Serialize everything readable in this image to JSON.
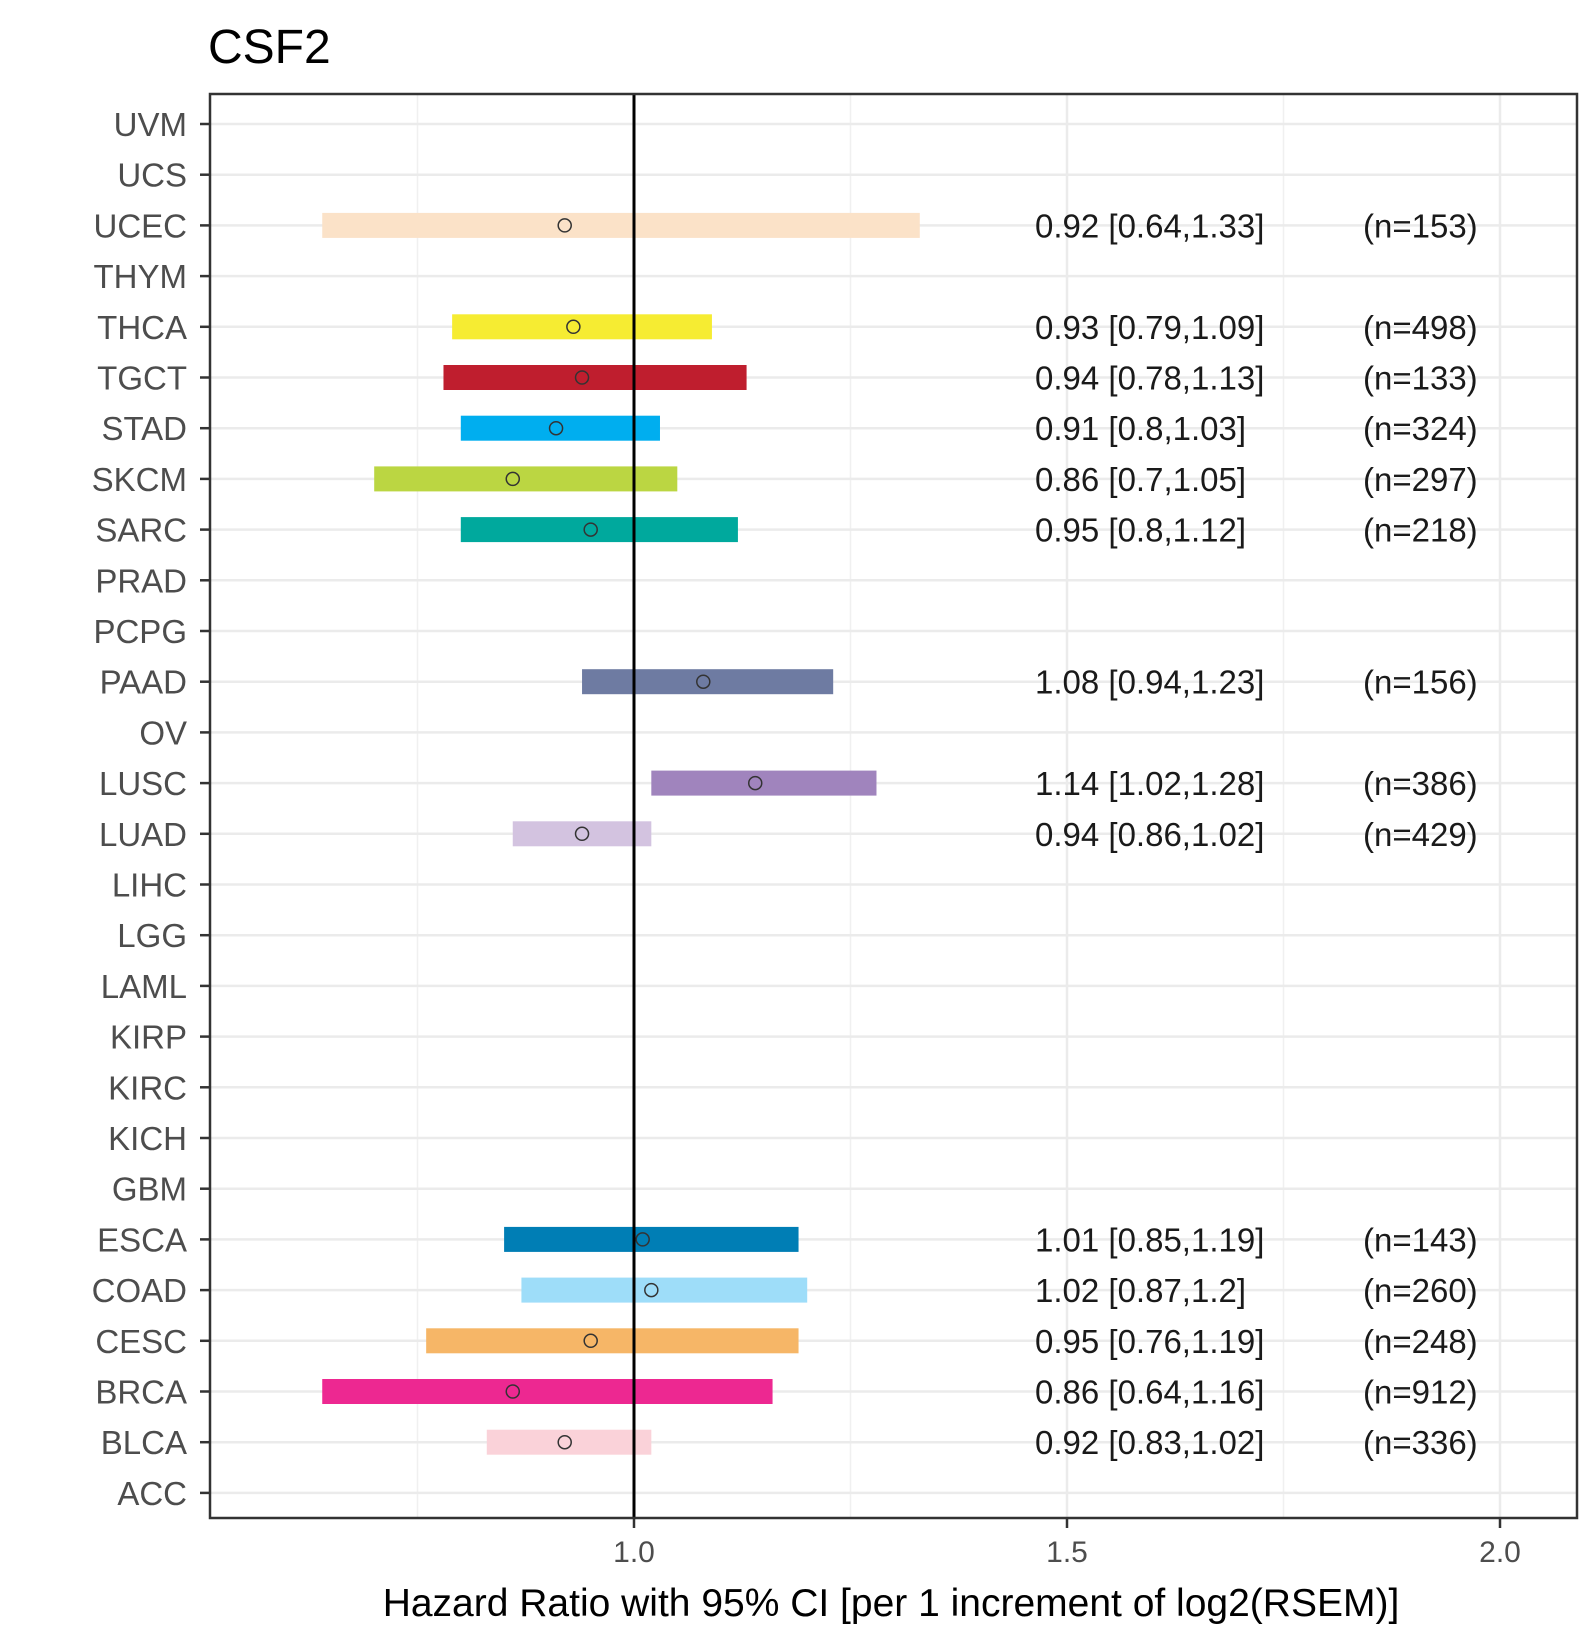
{
  "chart_data": {
    "type": "forest",
    "title": "CSF2",
    "xlabel": "Hazard Ratio with 95% CI [per 1 increment of log2(RSEM)]",
    "ylabel": "",
    "xlim": [
      0.5,
      2.09
    ],
    "xticks": [
      1.0,
      1.5,
      2.0
    ],
    "xtick_labels": [
      "1.0",
      "1.5",
      "2.0"
    ],
    "reference_line": 1.0,
    "grid": true,
    "categories": [
      "UVM",
      "UCS",
      "UCEC",
      "THYM",
      "THCA",
      "TGCT",
      "STAD",
      "SKCM",
      "SARC",
      "PRAD",
      "PCPG",
      "PAAD",
      "OV",
      "LUSC",
      "LUAD",
      "LIHC",
      "LGG",
      "LAML",
      "KIRP",
      "KIRC",
      "KICH",
      "GBM",
      "ESCA",
      "COAD",
      "CESC",
      "BRCA",
      "BLCA",
      "ACC"
    ],
    "series": [
      {
        "name": "UCEC",
        "hr": 0.92,
        "lower": 0.64,
        "upper": 1.33,
        "ci_text": "0.92 [0.64,1.33]",
        "n_text": "(n=153)",
        "color": "#FBE2C8"
      },
      {
        "name": "THCA",
        "hr": 0.93,
        "lower": 0.79,
        "upper": 1.09,
        "ci_text": "0.93 [0.79,1.09]",
        "n_text": "(n=498)",
        "color": "#F6EC32"
      },
      {
        "name": "TGCT",
        "hr": 0.94,
        "lower": 0.78,
        "upper": 1.13,
        "ci_text": "0.94 [0.78,1.13]",
        "n_text": "(n=133)",
        "color": "#BF1E2E"
      },
      {
        "name": "STAD",
        "hr": 0.91,
        "lower": 0.8,
        "upper": 1.03,
        "ci_text": "0.91 [0.8,1.03]",
        "n_text": "(n=324)",
        "color": "#00AEEF"
      },
      {
        "name": "SKCM",
        "hr": 0.86,
        "lower": 0.7,
        "upper": 1.05,
        "ci_text": "0.86 [0.7,1.05]",
        "n_text": "(n=297)",
        "color": "#BBD642"
      },
      {
        "name": "SARC",
        "hr": 0.95,
        "lower": 0.8,
        "upper": 1.12,
        "ci_text": "0.95 [0.8,1.12]",
        "n_text": "(n=218)",
        "color": "#00A99D"
      },
      {
        "name": "PAAD",
        "hr": 1.08,
        "lower": 0.94,
        "upper": 1.23,
        "ci_text": "1.08 [0.94,1.23]",
        "n_text": "(n=156)",
        "color": "#6E7BA2"
      },
      {
        "name": "LUSC",
        "hr": 1.14,
        "lower": 1.02,
        "upper": 1.28,
        "ci_text": "1.14 [1.02,1.28]",
        "n_text": "(n=386)",
        "color": "#A084BD"
      },
      {
        "name": "LUAD",
        "hr": 0.94,
        "lower": 0.86,
        "upper": 1.02,
        "ci_text": "0.94 [0.86,1.02]",
        "n_text": "(n=429)",
        "color": "#D3C3E0"
      },
      {
        "name": "ESCA",
        "hr": 1.01,
        "lower": 0.85,
        "upper": 1.19,
        "ci_text": "1.01 [0.85,1.19]",
        "n_text": "(n=143)",
        "color": "#007EB5"
      },
      {
        "name": "COAD",
        "hr": 1.02,
        "lower": 0.87,
        "upper": 1.2,
        "ci_text": "1.02 [0.87,1.2]",
        "n_text": "(n=260)",
        "color": "#9EDDF9"
      },
      {
        "name": "CESC",
        "hr": 0.95,
        "lower": 0.76,
        "upper": 1.19,
        "ci_text": "0.95 [0.76,1.19]",
        "n_text": "(n=248)",
        "color": "#F6B667"
      },
      {
        "name": "BRCA",
        "hr": 0.86,
        "lower": 0.64,
        "upper": 1.16,
        "ci_text": "0.86 [0.64,1.16]",
        "n_text": "(n=912)",
        "color": "#ED2891"
      },
      {
        "name": "BLCA",
        "hr": 0.92,
        "lower": 0.83,
        "upper": 1.02,
        "ci_text": "0.92 [0.83,1.02]",
        "n_text": "(n=336)",
        "color": "#FAD2D9"
      }
    ]
  }
}
